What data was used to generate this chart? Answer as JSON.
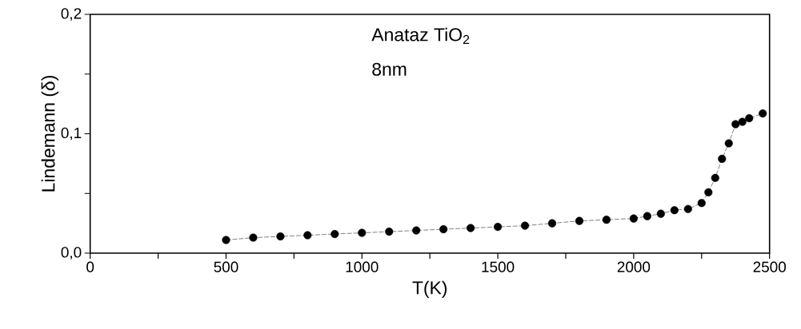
{
  "chart_data": {
    "type": "line",
    "xlabel": "T(K)",
    "ylabel": "Lindemann (δ)",
    "annotations": [
      "Anataz TiO$_{2}$",
      "8nm"
    ],
    "x": [
      500,
      600,
      700,
      800,
      900,
      1000,
      1100,
      1200,
      1300,
      1400,
      1500,
      1600,
      1700,
      1800,
      1900,
      2000,
      2050,
      2100,
      2150,
      2200,
      2250,
      2275,
      2300,
      2325,
      2350,
      2375,
      2400,
      2425,
      2475
    ],
    "series": [
      {
        "color": "#000000",
        "values": [
          0.011,
          0.013,
          0.014,
          0.015,
          0.016,
          0.017,
          0.018,
          0.019,
          0.02,
          0.021,
          0.022,
          0.023,
          0.025,
          0.027,
          0.028,
          0.029,
          0.031,
          0.033,
          0.036,
          0.037,
          0.042,
          0.051,
          0.063,
          0.079,
          0.092,
          0.108,
          0.11,
          0.113,
          0.117
        ]
      }
    ],
    "xlim": [
      0,
      2500
    ],
    "ylim": [
      0,
      0.2
    ],
    "xticks": [
      0,
      {
        "value": 250,
        "label": null
      },
      500,
      {
        "value": 750,
        "label": null
      },
      1000,
      {
        "value": 1250,
        "label": null
      },
      1500,
      {
        "value": 1750,
        "label": null
      },
      2000,
      {
        "value": 2250,
        "label": null
      },
      2500
    ],
    "yticks": [
      {
        "value": 0,
        "label": "0,0"
      },
      {
        "value": 0.05,
        "label": null
      },
      {
        "value": 0.1,
        "label": "0,1"
      },
      {
        "value": 0.15,
        "label": null
      },
      {
        "value": 0.2,
        "label": "0,2"
      }
    ],
    "marker": "circle",
    "line_style": "dashed",
    "grid": false,
    "legend": false
  }
}
